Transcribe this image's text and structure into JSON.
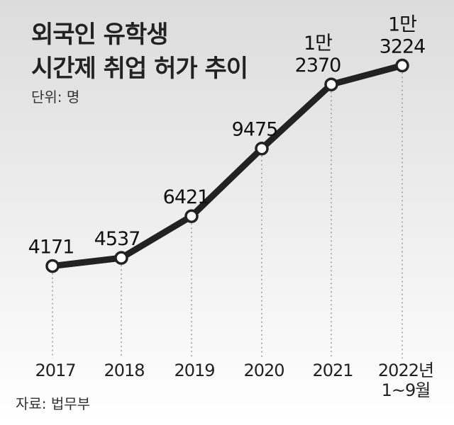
{
  "chart_data": {
    "type": "line",
    "title_lines": [
      "외국인 유학생",
      "시간제 취업 허가 추이"
    ],
    "unit": "단위: 명",
    "source": "자료: 법무부",
    "categories": [
      [
        "2017"
      ],
      [
        "2018"
      ],
      [
        "2019"
      ],
      [
        "2020"
      ],
      [
        "2021"
      ],
      [
        "2022년",
        "1~9월"
      ]
    ],
    "values": [
      4171,
      4537,
      6421,
      9475,
      12370,
      13224
    ],
    "value_labels": [
      [
        "4171"
      ],
      [
        "4537"
      ],
      [
        "6421"
      ],
      [
        "9475"
      ],
      [
        "1만",
        "2370"
      ],
      [
        "1만",
        "3224"
      ]
    ],
    "ylim": [
      0,
      15000
    ],
    "grid": false,
    "colors": {
      "line": "#222222",
      "marker_fill": "#ffffff",
      "drop_line": "#999999",
      "gradient_top": "#dcdcdc",
      "gradient_bottom": "#ffffff"
    }
  }
}
